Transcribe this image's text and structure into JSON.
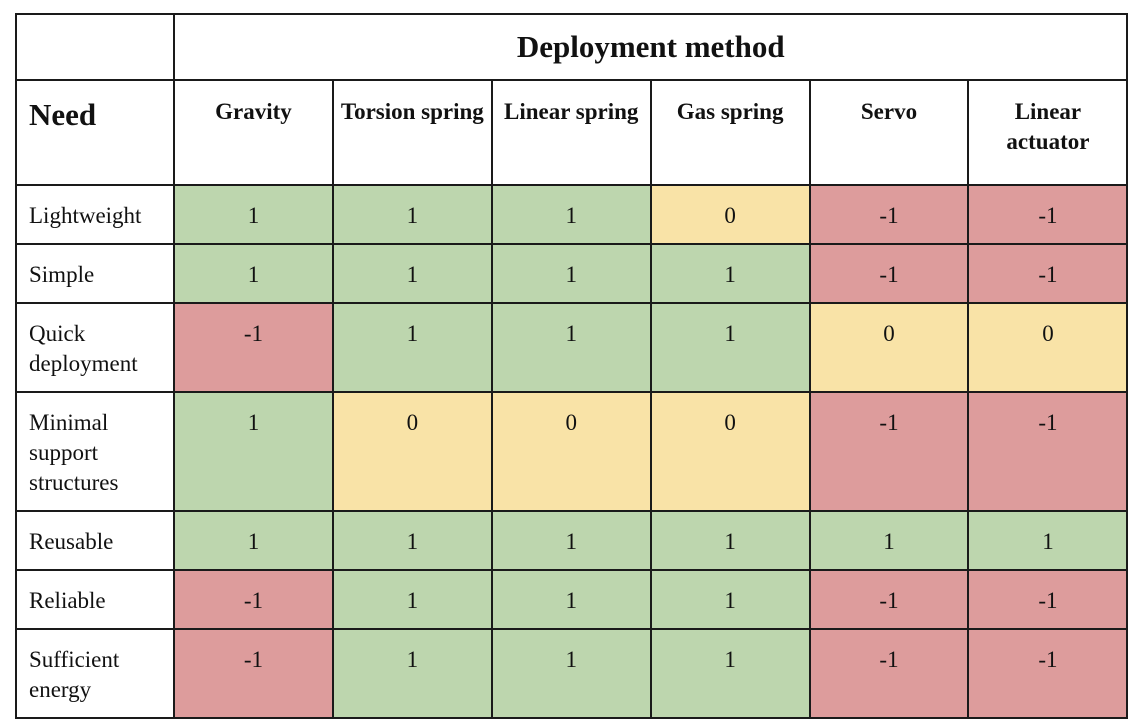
{
  "table": {
    "group_header": "Deployment method",
    "need_header": "Need",
    "columns": [
      "Gravity",
      "Torsion spring",
      "Linear spring",
      "Gas spring",
      "Servo",
      "Linear actuator"
    ],
    "rows": [
      {
        "need": "Lightweight",
        "scores": [
          "1",
          "1",
          "1",
          "0",
          "-1",
          "-1"
        ]
      },
      {
        "need": "Simple",
        "scores": [
          "1",
          "1",
          "1",
          "1",
          "-1",
          "-1"
        ]
      },
      {
        "need": "Quick deployment",
        "scores": [
          "-1",
          "1",
          "1",
          "1",
          "0",
          "0"
        ]
      },
      {
        "need": "Minimal support structures",
        "scores": [
          "1",
          "0",
          "0",
          "0",
          "-1",
          "-1"
        ]
      },
      {
        "need": "Reusable",
        "scores": [
          "1",
          "1",
          "1",
          "1",
          "1",
          "1"
        ]
      },
      {
        "need": "Reliable",
        "scores": [
          "-1",
          "1",
          "1",
          "1",
          "-1",
          "-1"
        ]
      },
      {
        "need": "Sufficient energy",
        "scores": [
          "-1",
          "1",
          "1",
          "1",
          "-1",
          "-1"
        ]
      }
    ]
  },
  "colors": {
    "positive": "#bdd6ae",
    "neutral": "#f9e3a7",
    "negative": "#dd9c9c",
    "border": "#1a1a1a"
  }
}
